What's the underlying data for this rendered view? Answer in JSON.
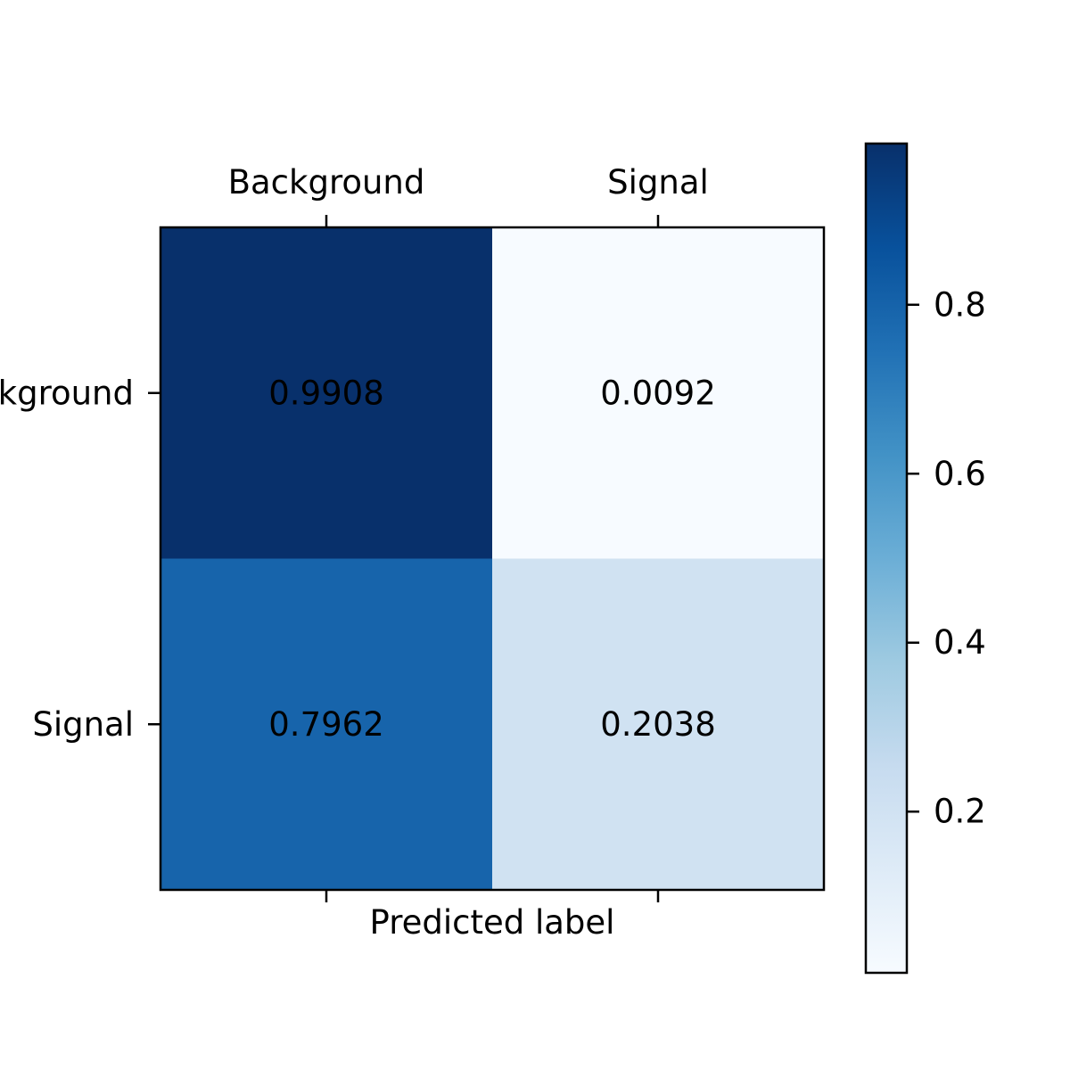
{
  "chart_data": {
    "type": "heatmap",
    "title": "",
    "xlabel": "Predicted label",
    "ylabel": "",
    "x_categories": [
      "Background",
      "Signal"
    ],
    "y_categories": [
      "Background",
      "Signal"
    ],
    "values": [
      [
        0.9908,
        0.0092
      ],
      [
        0.7962,
        0.2038
      ]
    ],
    "value_labels": [
      [
        "0.9908",
        "0.0092"
      ],
      [
        "0.7962",
        "0.2038"
      ]
    ],
    "x_tick_position": "top",
    "colormap": "Blues",
    "colormap_stops": [
      "#f7fbff",
      "#deebf7",
      "#c6dbef",
      "#9ecae1",
      "#6baed6",
      "#4292c6",
      "#2171b5",
      "#08519c",
      "#08306b"
    ],
    "colorbar": {
      "range": [
        0.0092,
        0.9908
      ],
      "ticks": [
        0.2,
        0.4,
        0.6,
        0.8
      ],
      "tick_labels": [
        "0.2",
        "0.4",
        "0.6",
        "0.8"
      ]
    },
    "grid": false
  }
}
